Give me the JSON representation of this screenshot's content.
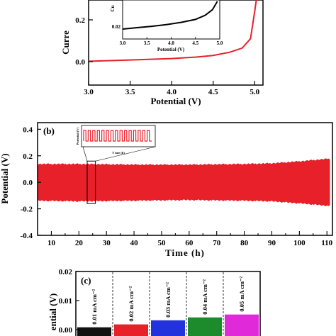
{
  "chart_data": [
    {
      "panel": "a",
      "type": "line",
      "xlabel": "Potential (V)",
      "ylabel": "Curre",
      "xlim": [
        3.0,
        5.1
      ],
      "ylim": [
        -0.05,
        0.4
      ],
      "xticks": [
        "3.0",
        "3.5",
        "4.0",
        "4.5",
        "5.0"
      ],
      "yticks": [
        "0.0",
        "0.2"
      ],
      "series": [
        {
          "color": "#e8202a",
          "x": [
            3.0,
            3.5,
            4.0,
            4.3,
            4.5,
            4.7,
            4.85,
            4.95,
            5.0,
            5.02
          ],
          "y": [
            0.002,
            0.008,
            0.015,
            0.022,
            0.03,
            0.045,
            0.065,
            0.11,
            0.24,
            0.45
          ]
        }
      ],
      "inset": {
        "type": "line",
        "xlabel": "Potential (V)",
        "ylabel": "Cu",
        "xlim": [
          3.0,
          5.0
        ],
        "xticks": [
          "3.0",
          "3.5",
          "4.0",
          "4.5",
          "5.0"
        ],
        "yticks": [
          "0.02"
        ],
        "series": [
          {
            "color": "#000000",
            "x": [
              3.0,
              3.3,
              3.6,
              3.9,
              4.2,
              4.5,
              4.7,
              4.85,
              4.95
            ],
            "y": [
              0.0,
              0.05,
              0.1,
              0.16,
              0.24,
              0.35,
              0.5,
              0.7,
              1.0
            ]
          }
        ]
      }
    },
    {
      "panel": "b",
      "label": "(b)",
      "type": "area",
      "xlabel": "Time (h)",
      "ylabel": "Potential (V)",
      "xlim": [
        5,
        112
      ],
      "ylim": [
        -0.4,
        0.45
      ],
      "xticks": [
        "10",
        "20",
        "30",
        "40",
        "50",
        "60",
        "70",
        "80",
        "90",
        "100",
        "110"
      ],
      "yticks": [
        "0.4",
        "0.2",
        "0.0",
        "-0.2",
        "-0.4"
      ],
      "series": [
        {
          "color": "#e8202a",
          "x": [
            5,
            20,
            40,
            60,
            80,
            90,
            100,
            111
          ],
          "upper": [
            0.135,
            0.135,
            0.13,
            0.13,
            0.135,
            0.14,
            0.155,
            0.175
          ],
          "lower": [
            -0.135,
            -0.14,
            -0.135,
            -0.13,
            -0.135,
            -0.14,
            -0.155,
            -0.175
          ]
        }
      ],
      "highlight_x": [
        23,
        26
      ],
      "inset": {
        "xlabel": "T ime (h)",
        "ylabel": "Potential (V)",
        "color": "#e8202a"
      }
    },
    {
      "panel": "c",
      "label": "(c)",
      "type": "area",
      "ylabel": "ential (V)",
      "yticks": [
        "0.02",
        "0.01",
        "0.00"
      ],
      "ylim": [
        -0.002,
        0.02
      ],
      "series": [
        {
          "name": "0.01 mA cm⁻²",
          "color": "#111111",
          "value": 0.0008
        },
        {
          "name": "0.02 mA cm⁻²",
          "color": "#e8202a",
          "value": 0.0018
        },
        {
          "name": "0.03 mA cm⁻²",
          "color": "#2233dd",
          "value": 0.0032
        },
        {
          "name": "0.04 mA cm⁻²",
          "color": "#1d8a2c",
          "value": 0.0042
        },
        {
          "name": "0.05 mA cm⁻²",
          "color": "#e029d8",
          "value": 0.0052
        }
      ]
    }
  ]
}
